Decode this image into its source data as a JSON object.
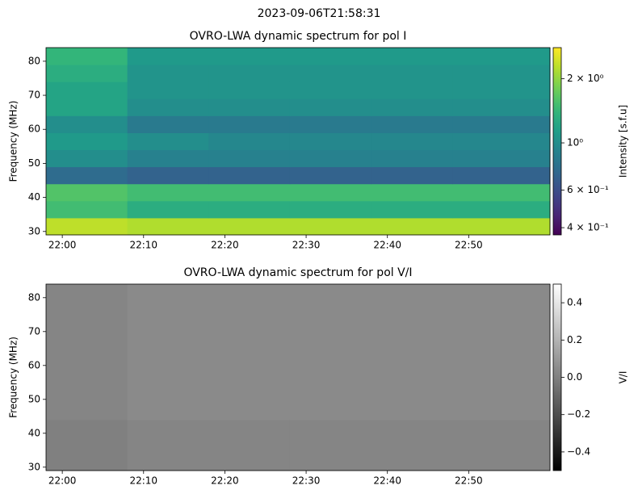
{
  "title": "2023-09-06T21:58:31",
  "chart_data": [
    {
      "type": "heatmap",
      "title": "OVRO-LWA dynamic spectrum for pol I",
      "y_label": "Frequency (MHz)",
      "x_bins": [
        "21:58",
        "22:08",
        "22:18",
        "22:28",
        "22:38",
        "22:48",
        "23:00"
      ],
      "y_bins": [
        29,
        34,
        39,
        44,
        49,
        54,
        59,
        64,
        69,
        74,
        79,
        84
      ],
      "values": [
        [
          2.3,
          2.2,
          2.2,
          2.2,
          2.2,
          2.2
        ],
        [
          1.5,
          1.3,
          1.3,
          1.3,
          1.3,
          1.3
        ],
        [
          1.6,
          1.5,
          1.5,
          1.5,
          1.5,
          1.5
        ],
        [
          0.75,
          0.7,
          0.7,
          0.7,
          0.7,
          0.7
        ],
        [
          1.0,
          0.9,
          0.9,
          0.9,
          0.9,
          0.9
        ],
        [
          1.1,
          1.0,
          0.95,
          0.95,
          0.95,
          0.95
        ],
        [
          1.0,
          0.85,
          0.85,
          0.85,
          0.85,
          0.85
        ],
        [
          1.2,
          1.0,
          1.0,
          1.0,
          1.0,
          1.0
        ],
        [
          1.2,
          1.05,
          1.05,
          1.05,
          1.05,
          1.05
        ],
        [
          1.3,
          1.05,
          1.05,
          1.05,
          1.05,
          1.05
        ],
        [
          1.4,
          1.1,
          1.1,
          1.1,
          1.1,
          1.1
        ]
      ],
      "xlim": [
        "21:58",
        "23:00"
      ],
      "xticks": [
        "22:00",
        "22:10",
        "22:20",
        "22:30",
        "22:40",
        "22:50"
      ],
      "ylim": [
        29,
        84
      ],
      "yticks": [
        30,
        40,
        50,
        60,
        70,
        80
      ],
      "colormap": "viridis",
      "color_scale": "log",
      "colorbar_label": "Intensity [s.f.u]",
      "clim": [
        0.37,
        2.8
      ],
      "cticks": [
        {
          "value": 0.4,
          "label": "4 × 10⁻¹"
        },
        {
          "value": 0.6,
          "label": "6 × 10⁻¹"
        },
        {
          "value": 1,
          "label": "10⁰"
        },
        {
          "value": 2,
          "label": "2 × 10⁰"
        }
      ]
    },
    {
      "type": "heatmap",
      "title": "OVRO-LWA dynamic spectrum for pol V/I",
      "y_label": "Frequency (MHz)",
      "x_bins": [
        "21:58",
        "22:08",
        "22:18",
        "22:28",
        "22:38",
        "22:48",
        "23:00"
      ],
      "y_bins": [
        29,
        34,
        39,
        44,
        49,
        54,
        59,
        64,
        69,
        74,
        79,
        84
      ],
      "values": [
        [
          0.0,
          0.02,
          0.02,
          0.02,
          0.02,
          0.02
        ],
        [
          0.0,
          0.02,
          0.02,
          0.02,
          0.02,
          0.02
        ],
        [
          0.0,
          0.02,
          0.02,
          0.02,
          0.02,
          0.02
        ],
        [
          0.02,
          0.04,
          0.04,
          0.04,
          0.04,
          0.04
        ],
        [
          0.02,
          0.04,
          0.04,
          0.04,
          0.04,
          0.04
        ],
        [
          0.02,
          0.04,
          0.04,
          0.04,
          0.04,
          0.04
        ],
        [
          0.02,
          0.04,
          0.04,
          0.04,
          0.04,
          0.04
        ],
        [
          0.02,
          0.04,
          0.04,
          0.04,
          0.04,
          0.04
        ],
        [
          0.02,
          0.04,
          0.04,
          0.04,
          0.04,
          0.04
        ],
        [
          0.02,
          0.04,
          0.04,
          0.04,
          0.04,
          0.04
        ],
        [
          0.02,
          0.04,
          0.04,
          0.04,
          0.04,
          0.04
        ]
      ],
      "xlim": [
        "21:58",
        "23:00"
      ],
      "xticks": [
        "22:00",
        "22:10",
        "22:20",
        "22:30",
        "22:40",
        "22:50"
      ],
      "ylim": [
        29,
        84
      ],
      "yticks": [
        30,
        40,
        50,
        60,
        70,
        80
      ],
      "colormap": "gray",
      "color_scale": "linear",
      "colorbar_label": "V/I",
      "clim": [
        -0.5,
        0.5
      ],
      "cticks": [
        {
          "value": -0.4,
          "label": "−0.4"
        },
        {
          "value": -0.2,
          "label": "−0.2"
        },
        {
          "value": 0,
          "label": "0.0"
        },
        0.2,
        0.4
      ]
    }
  ]
}
